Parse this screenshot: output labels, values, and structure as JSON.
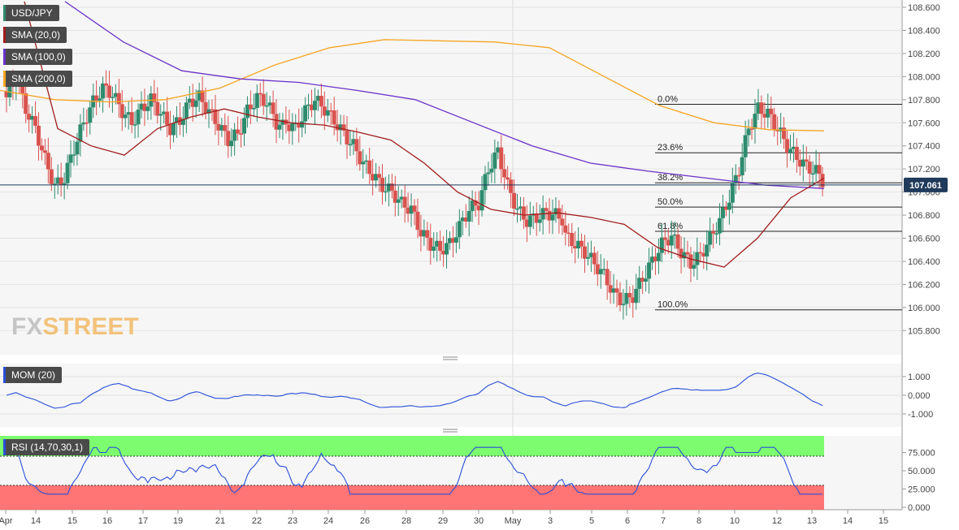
{
  "legend": {
    "symbol": "USD/JPY",
    "sma20": "SMA (20,0)",
    "sma100": "SMA (100,0)",
    "sma200": "SMA (200,0)",
    "mom": "MOM (20)",
    "rsi": "RSI (14,70,30,1)"
  },
  "brand": {
    "part1": "FX",
    "part2": "STREET"
  },
  "colors": {
    "up": "#2e8b6e",
    "down": "#d9534f",
    "sma20": "#a11c1c",
    "sma100": "#6a32c9",
    "sma200": "#f5a623",
    "mom": "#2a4fd8",
    "rsi": "#2a4fd8",
    "overbought": "#7cfc6e",
    "oversold": "#ff7474",
    "price_tag": "#1f3a5a"
  },
  "chart_data": {
    "type": "candlestick",
    "price_axis": {
      "min": 105.65,
      "max": 108.7,
      "ticks": [
        "108.600",
        "108.400",
        "108.200",
        "108.000",
        "107.800",
        "107.600",
        "107.400",
        "107.200",
        "107.000",
        "106.800",
        "106.600",
        "106.400",
        "106.200",
        "106.000",
        "105.800"
      ]
    },
    "current_price": "107.061",
    "x_labels": [
      "Apr",
      "14",
      "15",
      "16",
      "17",
      "19",
      "21",
      "22",
      "23",
      "24",
      "26",
      "28",
      "29",
      "30",
      "May",
      "3",
      "5",
      "6",
      "7",
      "8",
      "10",
      "12",
      "13",
      "14",
      "15"
    ],
    "fibonacci": [
      {
        "label": "0.0%",
        "price": 107.76
      },
      {
        "label": "23.6%",
        "price": 107.34
      },
      {
        "label": "38.2%",
        "price": 107.08
      },
      {
        "label": "50.0%",
        "price": 106.87
      },
      {
        "label": "61.8%",
        "price": 106.66
      },
      {
        "label": "100.0%",
        "price": 105.98
      }
    ],
    "close_path": [
      [
        107.82,
        107.98,
        107.72,
        107.55,
        107.28,
        107.05,
        107.12,
        107.38,
        107.6,
        107.78,
        107.9,
        107.85,
        107.7,
        107.6,
        107.72,
        107.8,
        107.68,
        107.55,
        107.62,
        107.78,
        107.82,
        107.7,
        107.58,
        107.45,
        107.5,
        107.7,
        107.82,
        107.78,
        107.6,
        107.55
      ],
      [
        107.6,
        107.55,
        107.7,
        107.8,
        107.72,
        107.62,
        107.5,
        107.4,
        107.25,
        107.15,
        107.05,
        107.0,
        106.9,
        106.85,
        106.65,
        106.55,
        106.5,
        106.55,
        106.7,
        106.85,
        106.9,
        107.2,
        107.35,
        107.05,
        106.85,
        106.75,
        106.78,
        106.82,
        106.8,
        106.75
      ],
      [
        106.62,
        106.55,
        106.48,
        106.38,
        106.28,
        106.12,
        106.05,
        106.1,
        106.25,
        106.4,
        106.55,
        106.62,
        106.48,
        106.38,
        106.45,
        106.6,
        106.75,
        106.95,
        107.2,
        107.55,
        107.72,
        107.68,
        107.55,
        107.4,
        107.3,
        107.22,
        107.18,
        107.06
      ]
    ],
    "sma20": {
      "from": 108.65,
      "path": [
        107.55,
        107.4,
        107.32,
        107.55,
        107.65,
        107.72,
        107.65,
        107.6,
        107.58,
        107.52,
        107.45,
        107.25,
        107.0,
        106.85,
        106.8,
        106.82,
        106.78,
        106.72,
        106.52,
        106.42,
        106.35,
        106.6,
        106.95,
        107.12
      ]
    },
    "sma100": {
      "path": [
        108.65,
        108.3,
        108.05,
        107.98,
        107.95,
        107.88,
        107.8,
        107.6,
        107.4,
        107.25,
        107.18,
        107.12,
        107.06,
        107.03
      ]
    },
    "sma200": {
      "path": [
        107.88,
        107.8,
        107.78,
        107.8,
        107.9,
        108.1,
        108.25,
        108.32,
        108.31,
        108.3,
        108.25,
        108.0,
        107.75,
        107.6,
        107.54,
        107.53
      ]
    },
    "mom": {
      "min": -1.5,
      "max": 1.5,
      "ticks": [
        "1.000",
        "0.000",
        "-1.000"
      ]
    },
    "rsi": {
      "min": 0,
      "max": 100,
      "overbought": 70,
      "oversold": 30,
      "ticks": [
        "75.000",
        "50.000",
        "25.000",
        "0.000"
      ]
    }
  }
}
